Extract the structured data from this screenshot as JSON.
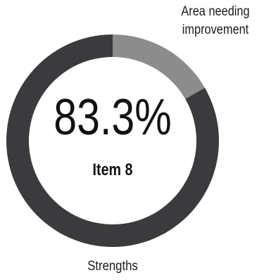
{
  "chart_data": {
    "type": "pie",
    "style": "donut",
    "slices": [
      {
        "label": "Strengths",
        "value": 83.3,
        "color": "#3b3b3d"
      },
      {
        "label": "Area needing improvement",
        "value": 16.7,
        "color": "#8c8c8c"
      }
    ],
    "center": {
      "value": "83.3%",
      "label": "Item 8"
    },
    "labels": {
      "top": [
        "Area needing",
        "improvement"
      ],
      "bottom": "Strengths"
    }
  }
}
